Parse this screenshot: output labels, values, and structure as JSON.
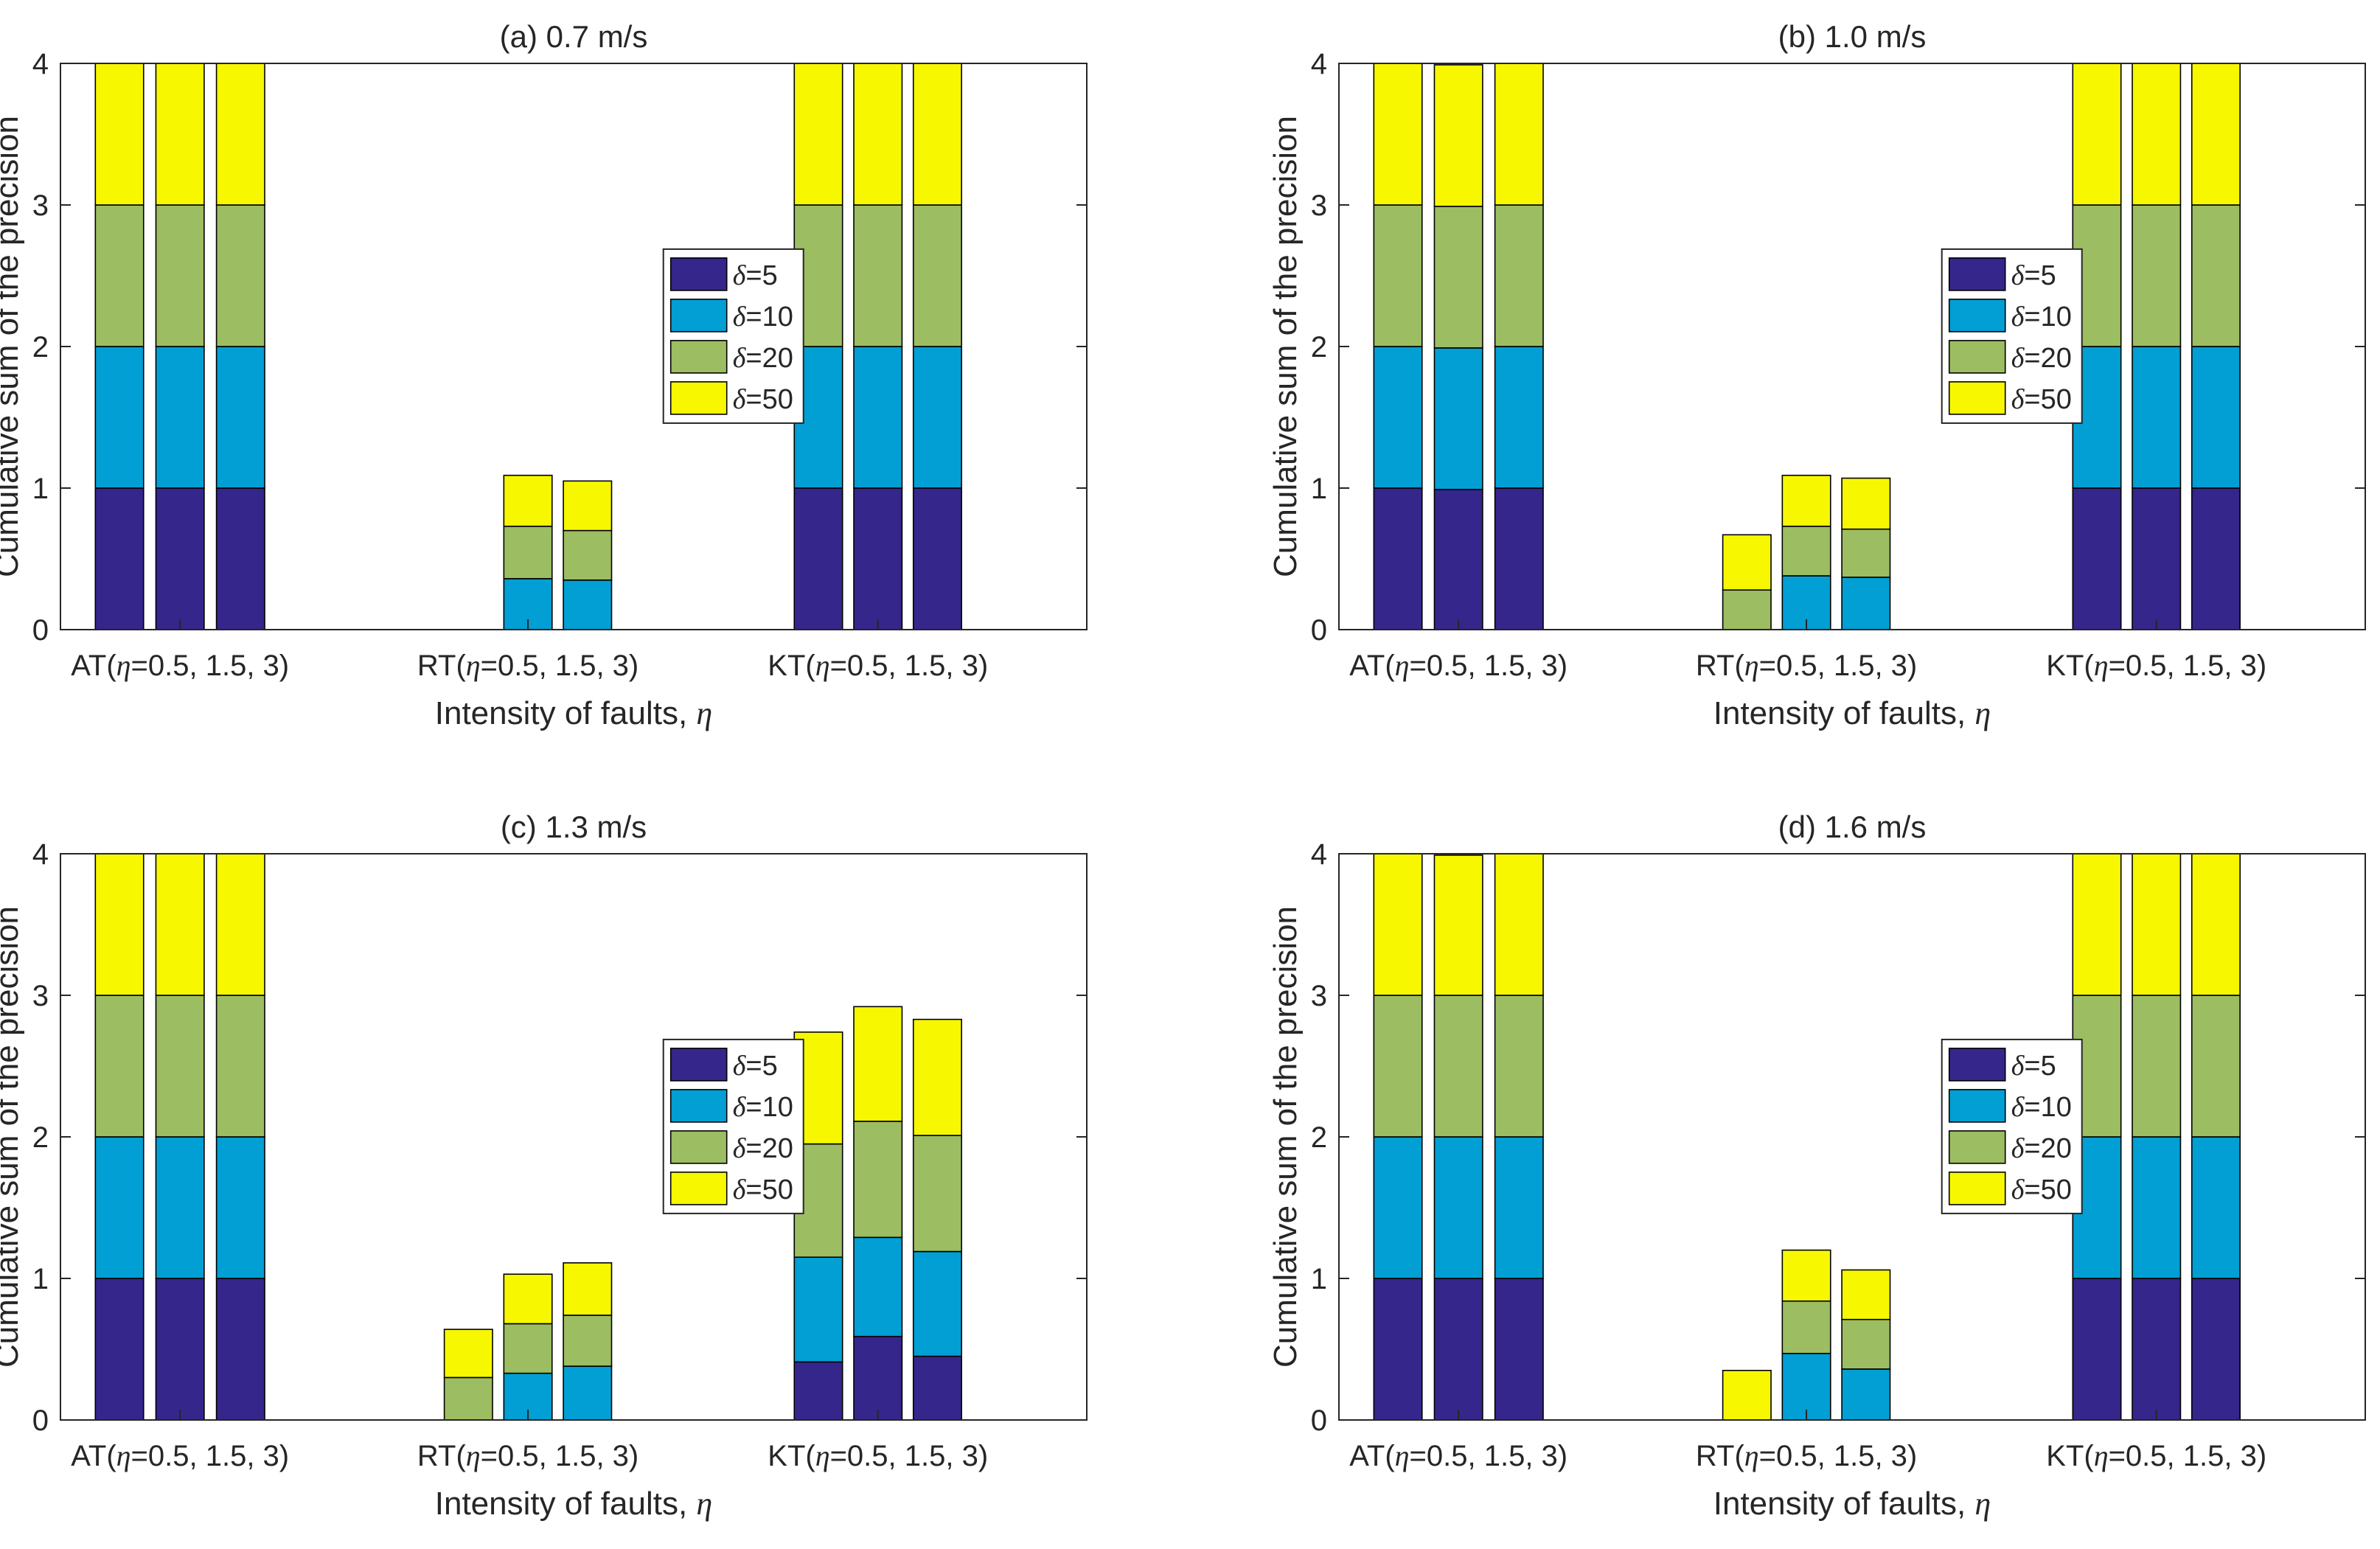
{
  "figure": {
    "panel_count": 4
  },
  "chart_data": [
    {
      "type": "bar",
      "stacked": true,
      "title": "(a) 0.7 m/s",
      "xlabel": "Intensity of faults, η",
      "ylabel": "Cumulative sum of the precision",
      "ylim": [
        0,
        4
      ],
      "yticks": [
        "0",
        "1",
        "2",
        "3",
        "4"
      ],
      "group_labels": [
        "AT(η=0.5, 1.5, 3)",
        "RT(η=0.5, 1.5, 3)",
        "KT(η=0.5, 1.5, 3)"
      ],
      "categories": [
        "AT η=0.5",
        "AT η=1.5",
        "AT η=3",
        "RT η=0.5",
        "RT η=1.5",
        "RT η=3",
        "KT η=0.5",
        "KT η=1.5",
        "KT η=3"
      ],
      "legend_position": "inside-middle",
      "series": [
        {
          "name": "δ=5",
          "color": "#35268c",
          "values": [
            1,
            1,
            1,
            0,
            0,
            0,
            1,
            1,
            1
          ]
        },
        {
          "name": "δ=10",
          "color": "#019fd3",
          "values": [
            1,
            1,
            1,
            0,
            0.36,
            0.35,
            1,
            1,
            1
          ]
        },
        {
          "name": "δ=20",
          "color": "#9cbd62",
          "values": [
            1,
            1,
            1,
            0,
            0.37,
            0.35,
            1,
            1,
            1
          ]
        },
        {
          "name": "δ=50",
          "color": "#f7f700",
          "values": [
            1,
            1,
            1,
            0,
            0.36,
            0.35,
            1,
            1,
            1
          ]
        }
      ]
    },
    {
      "type": "bar",
      "stacked": true,
      "title": "(b) 1.0 m/s",
      "xlabel": "Intensity of faults, η",
      "ylabel": "Cumulative sum of the precision",
      "ylim": [
        0,
        4
      ],
      "yticks": [
        "0",
        "1",
        "2",
        "3",
        "4"
      ],
      "group_labels": [
        "AT(η=0.5, 1.5, 3)",
        "RT(η=0.5, 1.5, 3)",
        "KT(η=0.5, 1.5, 3)"
      ],
      "categories": [
        "AT η=0.5",
        "AT η=1.5",
        "AT η=3",
        "RT η=0.5",
        "RT η=1.5",
        "RT η=3",
        "KT η=0.5",
        "KT η=1.5",
        "KT η=3"
      ],
      "legend_position": "inside-middle",
      "series": [
        {
          "name": "δ=5",
          "color": "#35268c",
          "values": [
            1,
            0.99,
            1,
            0,
            0,
            0,
            1,
            1,
            1
          ]
        },
        {
          "name": "δ=10",
          "color": "#019fd3",
          "values": [
            1,
            1,
            1,
            0,
            0.38,
            0.37,
            1,
            1,
            1
          ]
        },
        {
          "name": "δ=20",
          "color": "#9cbd62",
          "values": [
            1,
            1,
            1,
            0.28,
            0.35,
            0.34,
            1,
            1,
            1
          ]
        },
        {
          "name": "δ=50",
          "color": "#f7f700",
          "values": [
            1,
            1,
            1,
            0.39,
            0.36,
            0.36,
            1,
            1,
            1
          ]
        }
      ]
    },
    {
      "type": "bar",
      "stacked": true,
      "title": "(c) 1.3 m/s",
      "xlabel": "Intensity of faults, η",
      "ylabel": "Cumulative sum of the precision",
      "ylim": [
        0,
        4
      ],
      "yticks": [
        "0",
        "1",
        "2",
        "3",
        "4"
      ],
      "group_labels": [
        "AT(η=0.5, 1.5, 3)",
        "RT(η=0.5, 1.5, 3)",
        "KT(η=0.5, 1.5, 3)"
      ],
      "categories": [
        "AT η=0.5",
        "AT η=1.5",
        "AT η=3",
        "RT η=0.5",
        "RT η=1.5",
        "RT η=3",
        "KT η=0.5",
        "KT η=1.5",
        "KT η=3"
      ],
      "legend_position": "inside-middle",
      "series": [
        {
          "name": "δ=5",
          "color": "#35268c",
          "values": [
            1,
            1,
            1,
            0,
            0,
            0,
            0.41,
            0.59,
            0.45
          ]
        },
        {
          "name": "δ=10",
          "color": "#019fd3",
          "values": [
            1,
            1,
            1,
            0,
            0.33,
            0.38,
            0.74,
            0.7,
            0.74
          ]
        },
        {
          "name": "δ=20",
          "color": "#9cbd62",
          "values": [
            1,
            1,
            1,
            0.3,
            0.35,
            0.36,
            0.8,
            0.82,
            0.82
          ]
        },
        {
          "name": "δ=50",
          "color": "#f7f700",
          "values": [
            1,
            1,
            1,
            0.34,
            0.35,
            0.37,
            0.79,
            0.81,
            0.82
          ]
        }
      ]
    },
    {
      "type": "bar",
      "stacked": true,
      "title": "(d) 1.6 m/s",
      "xlabel": "Intensity of faults, η",
      "ylabel": "Cumulative sum of the precision",
      "ylim": [
        0,
        4
      ],
      "yticks": [
        "0",
        "1",
        "2",
        "3",
        "4"
      ],
      "group_labels": [
        "AT(η=0.5, 1.5, 3)",
        "RT(η=0.5, 1.5, 3)",
        "KT(η=0.5, 1.5, 3)"
      ],
      "categories": [
        "AT η=0.5",
        "AT η=1.5",
        "AT η=3",
        "RT η=0.5",
        "RT η=1.5",
        "RT η=3",
        "KT η=0.5",
        "KT η=1.5",
        "KT η=3"
      ],
      "legend_position": "inside-middle",
      "series": [
        {
          "name": "δ=5",
          "color": "#35268c",
          "values": [
            1,
            1,
            1,
            0,
            0,
            0,
            1,
            1,
            1
          ]
        },
        {
          "name": "δ=10",
          "color": "#019fd3",
          "values": [
            1,
            1,
            1,
            0,
            0.47,
            0.36,
            1,
            1,
            1
          ]
        },
        {
          "name": "δ=20",
          "color": "#9cbd62",
          "values": [
            1,
            1,
            1,
            0,
            0.37,
            0.35,
            1,
            1,
            1
          ]
        },
        {
          "name": "δ=50",
          "color": "#f7f700",
          "values": [
            1,
            0.99,
            1,
            0.35,
            0.36,
            0.35,
            1,
            1,
            1
          ]
        }
      ]
    }
  ]
}
